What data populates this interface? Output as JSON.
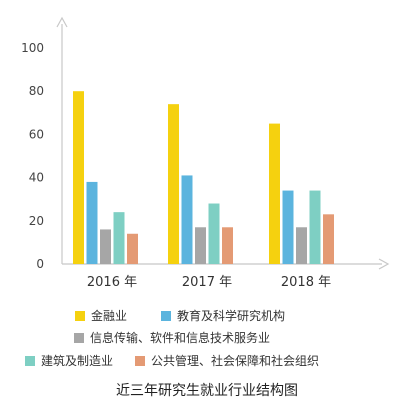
{
  "chart_data": {
    "type": "bar",
    "title": "近三年研究生就业行业结构图",
    "categories": [
      "2016 年",
      "2017 年",
      "2018 年"
    ],
    "series": [
      {
        "name": "金融业",
        "color": "#F5D10F",
        "values": [
          80,
          74,
          65
        ]
      },
      {
        "name": "教育及科学研究机构",
        "color": "#5BB4DE",
        "values": [
          38,
          41,
          34
        ]
      },
      {
        "name": "信息传输、软件和信息技术服务业",
        "color": "#A6A6A6",
        "values": [
          16,
          17,
          17
        ]
      },
      {
        "name": "建筑及制造业",
        "color": "#7ECFC3",
        "values": [
          24,
          28,
          34
        ]
      },
      {
        "name": "公共管理、社会保障和社会组织",
        "color": "#E49A74",
        "values": [
          14,
          17,
          23
        ]
      }
    ],
    "y_ticks": [
      "0",
      "20",
      "40",
      "60",
      "80",
      "100"
    ],
    "ylim": [
      0,
      100
    ],
    "grid": false,
    "legend_placement": "bottom",
    "axis_color": "#C8C8C8"
  }
}
